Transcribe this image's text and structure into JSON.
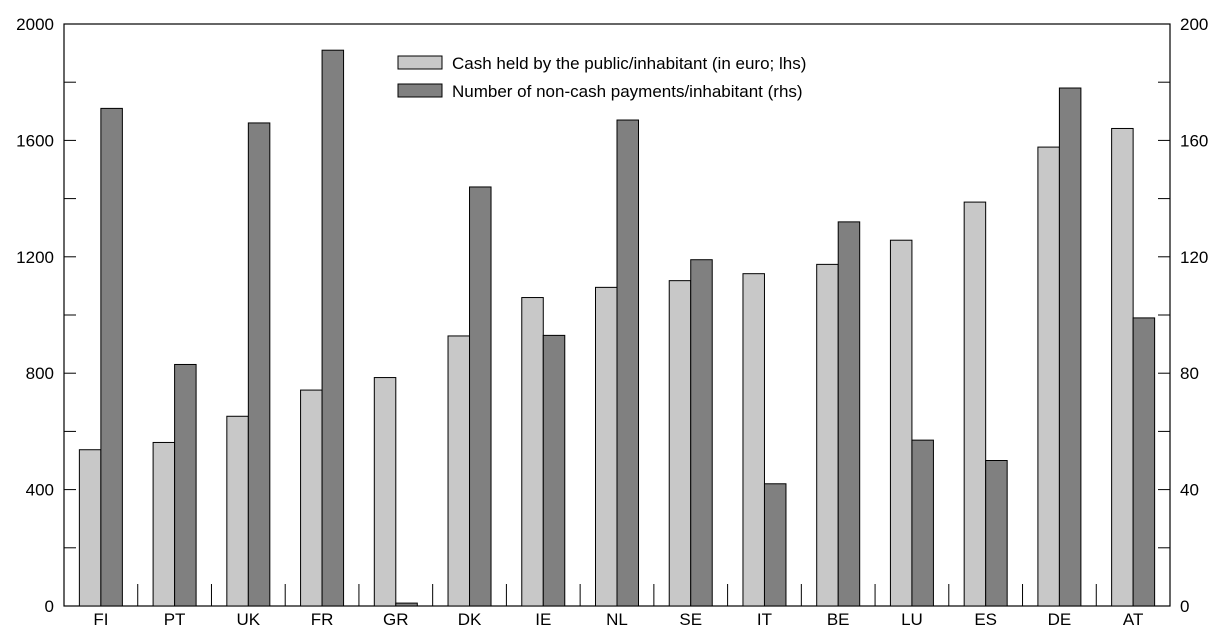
{
  "chart_data": {
    "type": "bar",
    "categories": [
      "FI",
      "PT",
      "UK",
      "FR",
      "GR",
      "DK",
      "IE",
      "NL",
      "SE",
      "IT",
      "BE",
      "LU",
      "ES",
      "DE",
      "AT"
    ],
    "series": [
      {
        "name": "Cash held by the public/inhabitant (in euro; lhs)",
        "axis": "left",
        "color": "#c8c8c8",
        "values": [
          537,
          562,
          652,
          742,
          785,
          928,
          1060,
          1095,
          1118,
          1142,
          1174,
          1257,
          1388,
          1577,
          1641
        ]
      },
      {
        "name": "Number of non-cash payments/inhabitant (rhs)",
        "axis": "right",
        "color": "#808080",
        "values": [
          171,
          83,
          166,
          191,
          1,
          144,
          93,
          167,
          119,
          42,
          132,
          57,
          50,
          178,
          99
        ]
      }
    ],
    "y_left": {
      "min": 0,
      "max": 2000,
      "ticks": [
        0,
        400,
        800,
        1200,
        1600,
        2000
      ]
    },
    "y_right": {
      "min": 0,
      "max": 200,
      "ticks": [
        0,
        40,
        80,
        120,
        160,
        200
      ]
    },
    "legend_position": "top-center",
    "grid": false
  }
}
